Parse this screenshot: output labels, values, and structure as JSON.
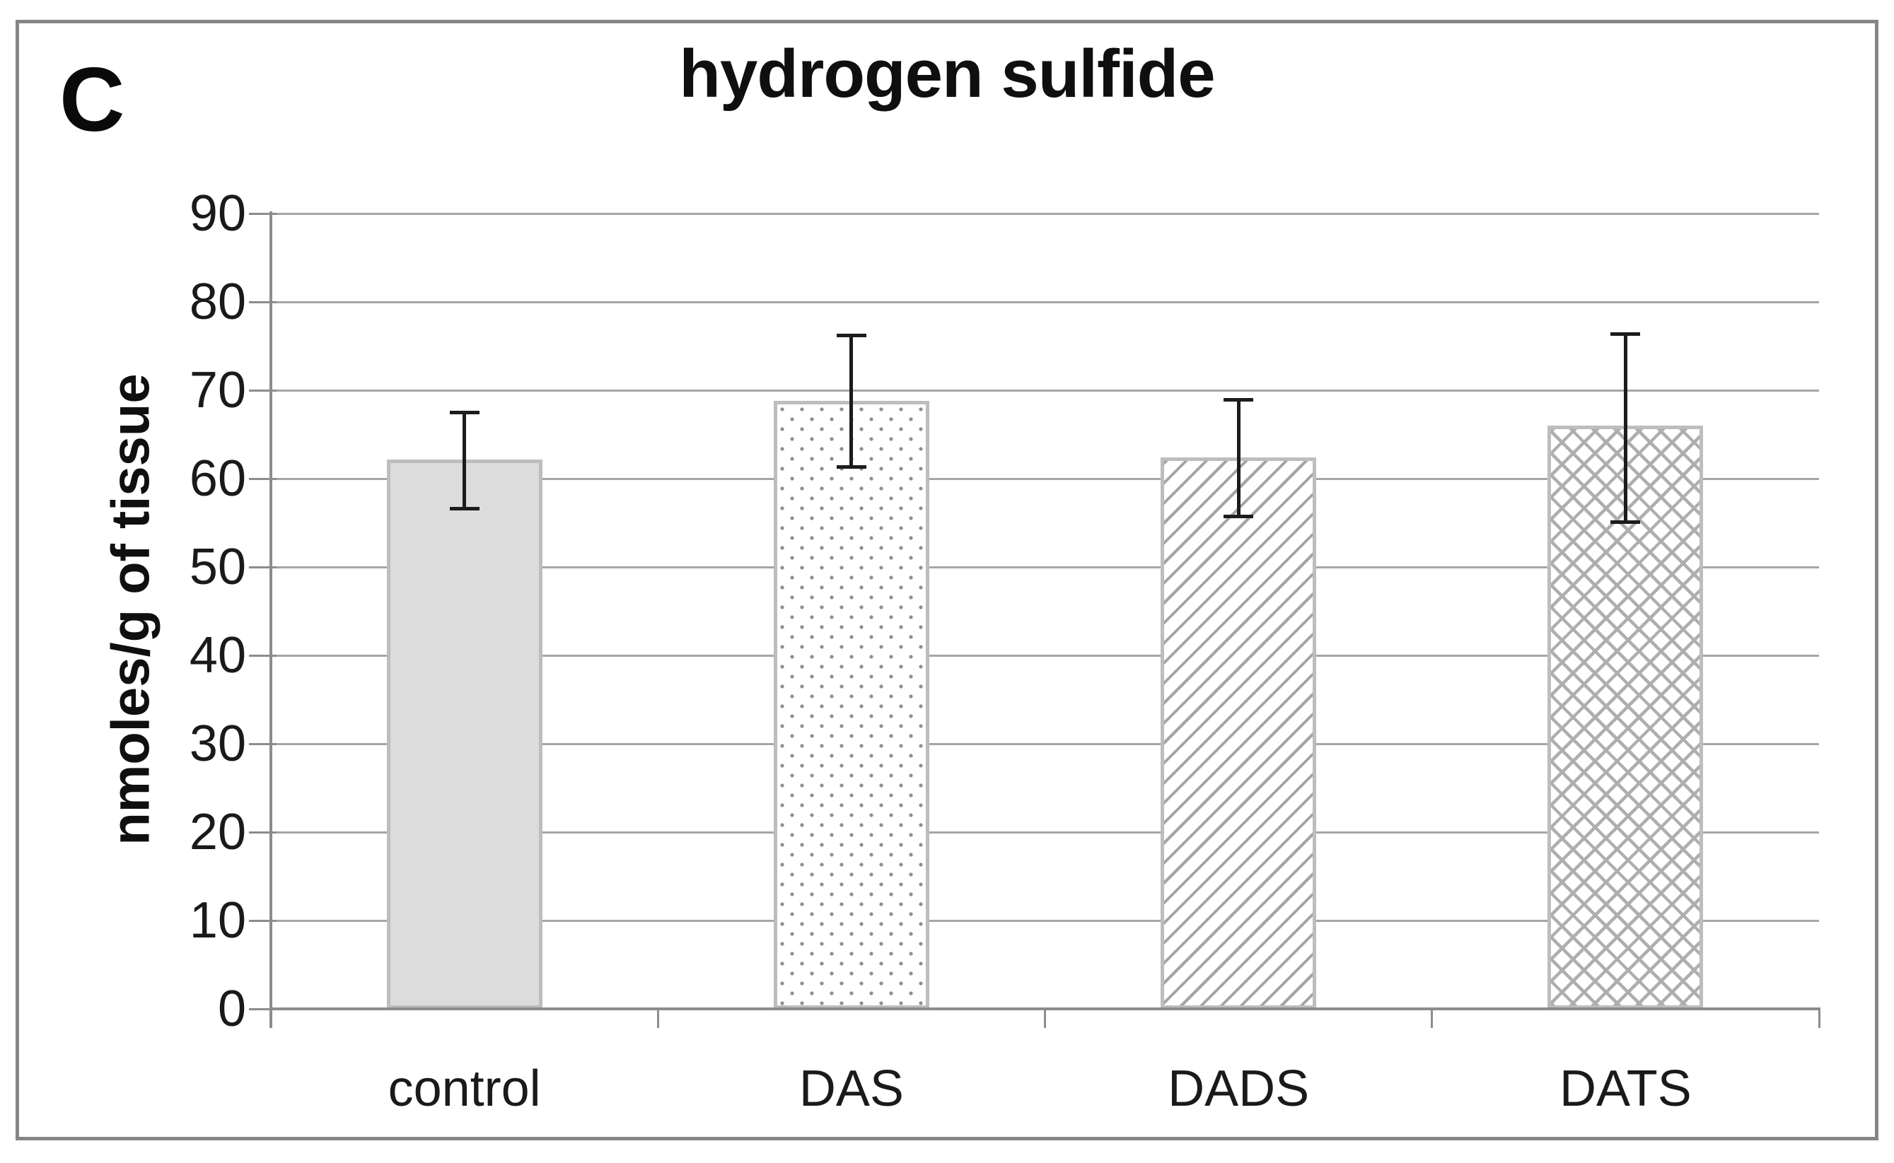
{
  "figure": {
    "panel_label": "C"
  },
  "chart_data": {
    "type": "bar",
    "title": "hydrogen sulfide",
    "ylabel": "nmoles/g of tissue",
    "xlabel": "",
    "categories": [
      "control",
      "DAS",
      "DADS",
      "DATS"
    ],
    "values": [
      62.2,
      68.8,
      62.4,
      66.0
    ],
    "error_bars": {
      "upper": [
        67.5,
        76.2,
        68.9,
        76.4
      ],
      "lower": [
        56.6,
        61.3,
        55.7,
        55.1
      ]
    },
    "ylim": [
      0,
      90
    ],
    "yticks": [
      "0",
      "10",
      "20",
      "30",
      "40",
      "50",
      "60",
      "70",
      "80",
      "90"
    ],
    "grid": "horizontal",
    "legend_position": "none",
    "bar_patterns": [
      "solid",
      "dots",
      "diagonal-hatch",
      "cross-hatch"
    ]
  },
  "colors": {
    "background": "#ffffff",
    "frame": "#868686",
    "gridline": "#a6a6a6",
    "axis": "#8c8c8c",
    "error_bar": "#1c1c1c",
    "bar_fill_solid": "#dcdcdc",
    "bar_border": "#bdbdbd",
    "pattern_gray": "#9e9e9e",
    "text": "#111111"
  }
}
